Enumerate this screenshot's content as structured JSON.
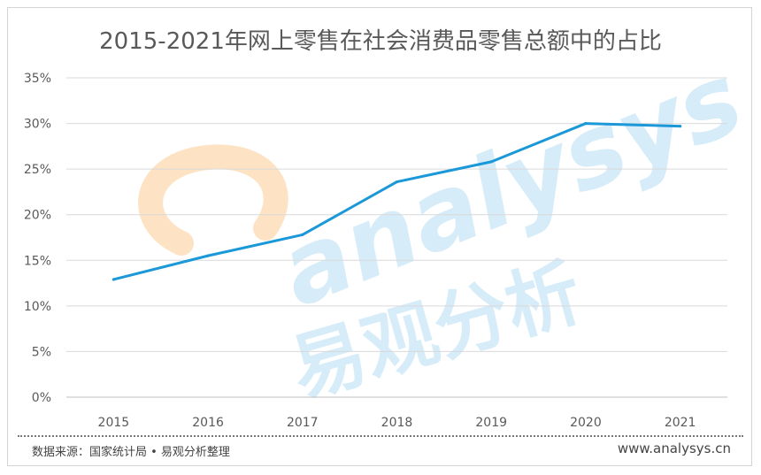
{
  "chart_data": {
    "type": "line",
    "title": "2015-2021年网上零售在社会消费品零售总额中的占比",
    "categories": [
      "2015",
      "2016",
      "2017",
      "2018",
      "2019",
      "2020",
      "2021"
    ],
    "series": [
      {
        "values": [
          12.9,
          15.5,
          17.8,
          23.6,
          25.8,
          30.0,
          29.7
        ]
      }
    ],
    "ylim": [
      0,
      35
    ],
    "yticks": [
      "0%",
      "5%",
      "10%",
      "15%",
      "20%",
      "25%",
      "30%",
      "35%"
    ],
    "grid": true,
    "line_color": "#1b98d8"
  },
  "footer": {
    "source": "数据来源：国家统计局 • 易观分析整理",
    "website": "www.analysys.cn"
  },
  "watermark": {
    "latin": "analysys",
    "cjk": "易观分析",
    "latin_color": "#d6ecf9",
    "arc_color": "#fde3c4"
  }
}
